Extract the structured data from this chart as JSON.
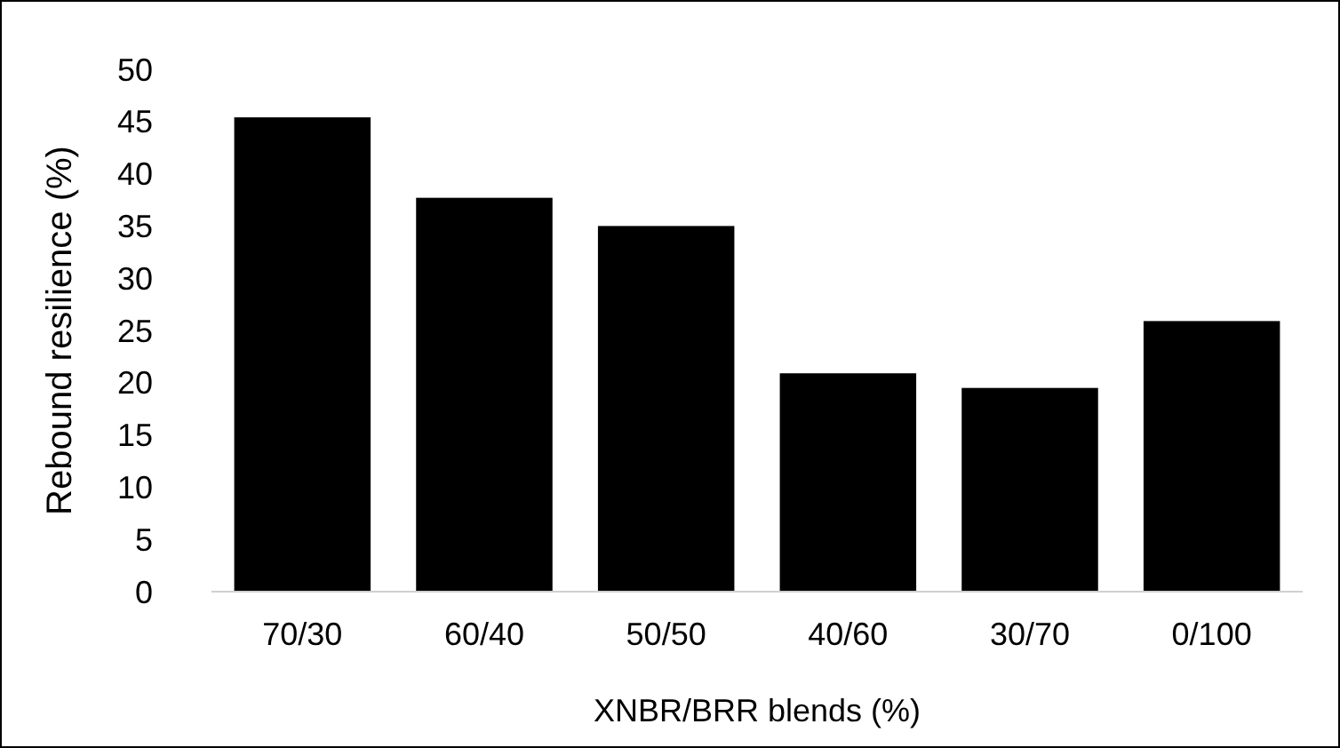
{
  "chart_data": {
    "type": "bar",
    "xlabel": "XNBR/BRR blends (%)",
    "ylabel": "Rebound resilience (%)",
    "categories": [
      "70/30",
      "60/40",
      "50/50",
      "40/60",
      "30/70",
      "0/100"
    ],
    "values": [
      45.4,
      37.7,
      35.0,
      20.9,
      19.5,
      25.9
    ],
    "color": "#000000",
    "ylim": [
      0,
      50
    ],
    "yticks": [
      0,
      5,
      10,
      15,
      20,
      25,
      30,
      35,
      40,
      45,
      50
    ],
    "grid": false
  }
}
